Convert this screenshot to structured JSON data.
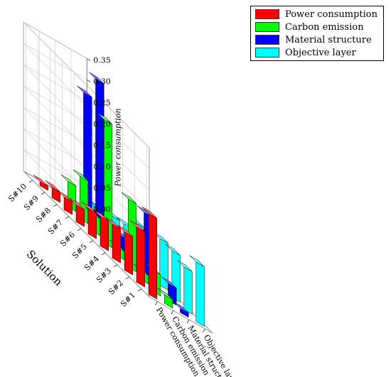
{
  "chart_data": {
    "type": "bar",
    "chart_kind": "3d-bar",
    "solutions": [
      "S#1",
      "S#2",
      "S#3",
      "S#4",
      "S#5",
      "S#6",
      "S#7",
      "S#8",
      "S#9",
      "S#10"
    ],
    "criteria": [
      "Power consumption",
      "Carbon emission",
      "Material structure",
      "Objective layer"
    ],
    "series": [
      {
        "name": "Power consumption",
        "color": "#ff0000",
        "values": [
          0.19,
          0.13,
          0.09,
          0.08,
          0.07,
          0.06,
          0.04,
          0.03,
          0.025,
          0.01
        ]
      },
      {
        "name": "Carbon emission",
        "color": "#00ff00",
        "values": [
          0.02,
          0.05,
          0.02,
          0.16,
          0.02,
          0.29,
          0.04,
          0.1,
          0.06,
          0.0
        ]
      },
      {
        "name": "Material structure",
        "color": "#0000ff",
        "values": [
          0.01,
          0.04,
          0.0,
          0.15,
          0.05,
          0.04,
          0.04,
          0.35,
          0.29,
          0.0
        ]
      },
      {
        "name": "Objective layer",
        "color": "#00ffff",
        "values": [
          0.14,
          0.1,
          0.11,
          0.11,
          0.08,
          0.09,
          0.06,
          0.05,
          0.03,
          0.03
        ]
      }
    ],
    "zlabel": "Power consumption",
    "ylabel": "Solution",
    "zlim": [
      0,
      0.35
    ],
    "zticks": [
      "0.00",
      "0.05",
      "0.10",
      "0.15",
      "0.20",
      "0.25",
      "0.30",
      "0.35"
    ],
    "legend_position": "top-right",
    "grid": true
  },
  "legend": {
    "items": [
      {
        "label": "Power consumption",
        "color": "#ff0000"
      },
      {
        "label": "Carbon emission",
        "color": "#00ff00"
      },
      {
        "label": "Material structure",
        "color": "#0000ff"
      },
      {
        "label": "Objective layer",
        "color": "#00ffff"
      }
    ]
  }
}
